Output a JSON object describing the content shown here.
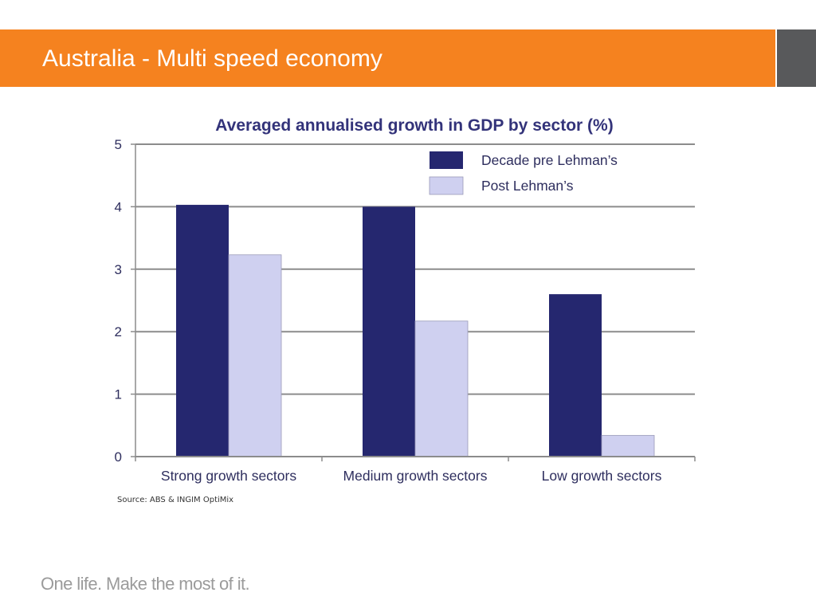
{
  "slide": {
    "title": "Australia - Multi speed economy",
    "source": "Source: ABS & INGIM OptiMix",
    "tagline": "One life. Make the most of it.",
    "colors": {
      "header": "#f5821f",
      "header_side": "#58595b"
    }
  },
  "chart_data": {
    "type": "bar",
    "title": "Averaged annualised growth in GDP by sector (%)",
    "categories": [
      "Strong growth sectors",
      "Medium growth sectors",
      "Low growth sectors"
    ],
    "series": [
      {
        "name": "Decade pre Lehman’s",
        "values": [
          4.03,
          4.0,
          2.6
        ],
        "color": "#25276f"
      },
      {
        "name": "Post Lehman’s",
        "values": [
          3.23,
          2.17,
          0.34
        ],
        "color": "#cfd0f0"
      }
    ],
    "ylim": [
      0,
      5
    ],
    "yticks": [
      0,
      1,
      2,
      3,
      4,
      5
    ],
    "xlabel": "",
    "ylabel": "",
    "grid": true,
    "legend": "top-right"
  }
}
